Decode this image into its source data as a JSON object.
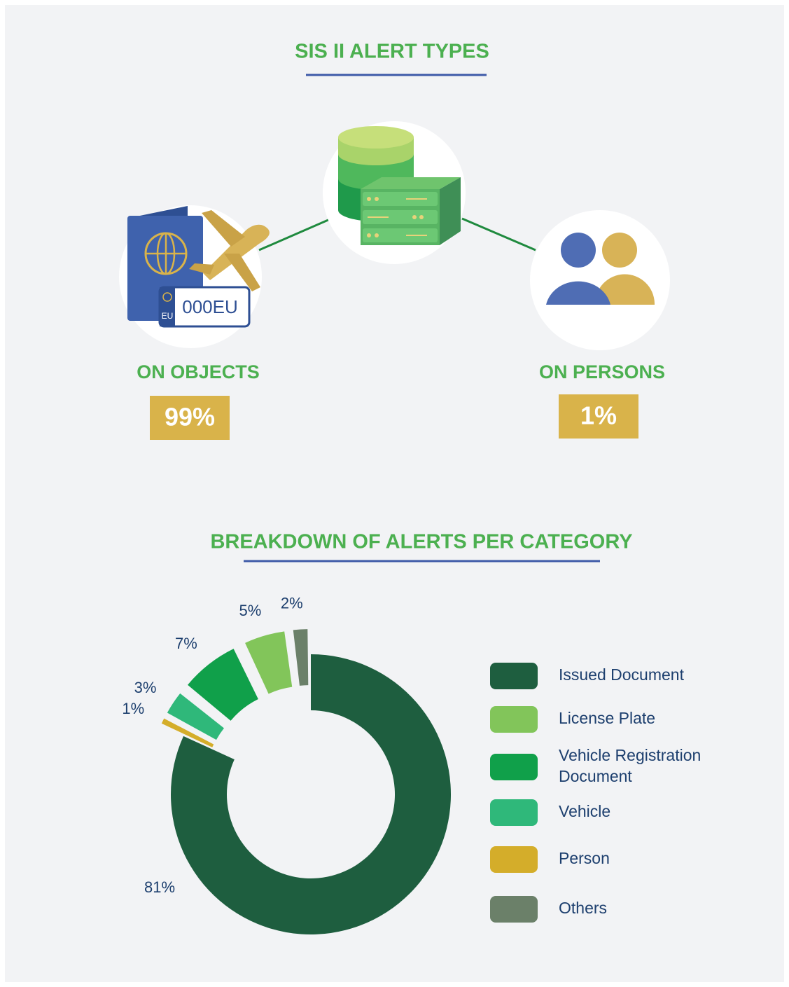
{
  "alert_types": {
    "title": "SIS II ALERT TYPES",
    "objects": {
      "label": "ON OBJECTS",
      "share": "99%"
    },
    "persons": {
      "label": "ON PERSONS",
      "share": "1%"
    },
    "plate": {
      "number": "000EU",
      "country": "EU"
    }
  },
  "chart_data": {
    "type": "donut",
    "title": "BREAKDOWN OF ALERTS PER CATEGORY",
    "categories": [
      "Issued Document",
      "License Plate",
      "Vehicle Registration Document",
      "Vehicle",
      "Person",
      "Others"
    ],
    "values": [
      81,
      5,
      7,
      3,
      1,
      2
    ],
    "value_labels": [
      "81%",
      "5%",
      "7%",
      "3%",
      "1%",
      "2%"
    ],
    "colors": [
      "#1e5e3f",
      "#82c55a",
      "#10a04a",
      "#2fb87a",
      "#d4ad2a",
      "#6b8069"
    ]
  }
}
